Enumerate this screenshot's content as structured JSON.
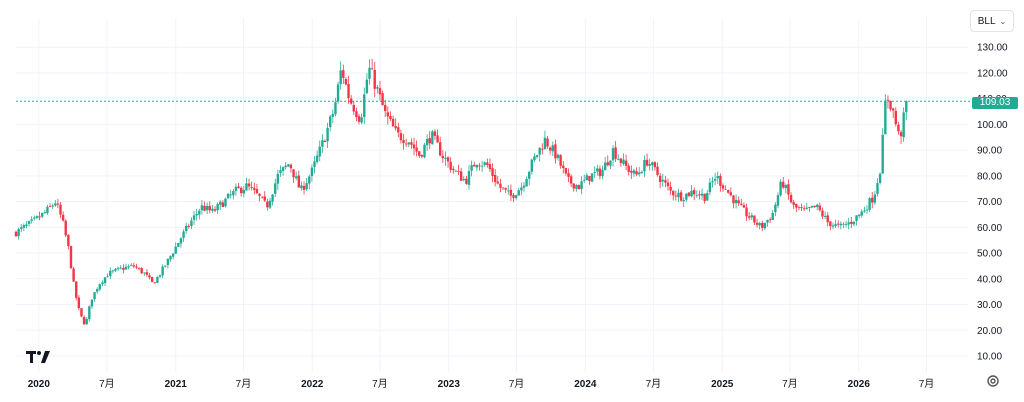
{
  "symbol": {
    "label": "BLL"
  },
  "price_badge": {
    "label": "109.03"
  },
  "colors": {
    "up": "#22ab94",
    "down": "#f23645",
    "grid": "#f0f3fa",
    "axis_text": "#131722",
    "last_line": "#22ab94"
  },
  "icons": {
    "logo": "tradingview-logo-icon",
    "settings": "settings-gear-icon",
    "dropdown": "chevron-down-icon"
  },
  "chart_data": {
    "type": "candlestick",
    "title": "",
    "xlabel": "",
    "ylabel": "",
    "ylim": [
      0,
      140
    ],
    "xlim": [
      "2019-11-01",
      "2026-10-20"
    ],
    "y_ticks": [
      "10.00",
      "20.00",
      "30.00",
      "40.00",
      "50.00",
      "60.00",
      "70.00",
      "80.00",
      "90.00",
      "100.00",
      "110.00",
      "120.00",
      "130.00"
    ],
    "y_tick_values": [
      10,
      20,
      30,
      40,
      50,
      60,
      70,
      80,
      90,
      100,
      110,
      120,
      130
    ],
    "x_ticks": [
      {
        "label": "2020",
        "date": "2020-01-01",
        "bold": true
      },
      {
        "label": "7月",
        "date": "2020-07-01",
        "bold": false
      },
      {
        "label": "2021",
        "date": "2021-01-01",
        "bold": true
      },
      {
        "label": "7月",
        "date": "2021-07-01",
        "bold": false
      },
      {
        "label": "2022",
        "date": "2022-01-01",
        "bold": true
      },
      {
        "label": "7月",
        "date": "2022-07-01",
        "bold": false
      },
      {
        "label": "2023",
        "date": "2023-01-01",
        "bold": true
      },
      {
        "label": "7月",
        "date": "2023-07-01",
        "bold": false
      },
      {
        "label": "2024",
        "date": "2024-01-01",
        "bold": true
      },
      {
        "label": "7月",
        "date": "2024-07-01",
        "bold": false
      },
      {
        "label": "2025",
        "date": "2025-01-01",
        "bold": true
      },
      {
        "label": "7月",
        "date": "2025-07-01",
        "bold": false
      },
      {
        "label": "2026",
        "date": "2026-01-01",
        "bold": true
      },
      {
        "label": "7月",
        "date": "2026-07-01",
        "bold": false
      }
    ],
    "last_price": 109.03,
    "grid": true,
    "close_path": [
      [
        "2019-11-01",
        58
      ],
      [
        "2019-12-15",
        62
      ],
      [
        "2020-01-20",
        66
      ],
      [
        "2020-02-15",
        70
      ],
      [
        "2020-03-05",
        62
      ],
      [
        "2020-03-20",
        52
      ],
      [
        "2020-04-05",
        36
      ],
      [
        "2020-04-20",
        26
      ],
      [
        "2020-05-05",
        22
      ],
      [
        "2020-05-20",
        32
      ],
      [
        "2020-06-10",
        38
      ],
      [
        "2020-07-05",
        42
      ],
      [
        "2020-08-10",
        44
      ],
      [
        "2020-09-10",
        45
      ],
      [
        "2020-10-10",
        42
      ],
      [
        "2020-11-01",
        38
      ],
      [
        "2020-11-20",
        42
      ],
      [
        "2020-12-15",
        48
      ],
      [
        "2021-01-15",
        56
      ],
      [
        "2021-02-10",
        62
      ],
      [
        "2021-03-10",
        68
      ],
      [
        "2021-04-10",
        66
      ],
      [
        "2021-05-10",
        70
      ],
      [
        "2021-06-10",
        74
      ],
      [
        "2021-07-10",
        76
      ],
      [
        "2021-08-10",
        72
      ],
      [
        "2021-09-01",
        68
      ],
      [
        "2021-10-01",
        80
      ],
      [
        "2021-11-01",
        85
      ],
      [
        "2021-12-01",
        74
      ],
      [
        "2022-01-01",
        82
      ],
      [
        "2022-02-01",
        94
      ],
      [
        "2022-03-01",
        106
      ],
      [
        "2022-03-20",
        122
      ],
      [
        "2022-04-10",
        110
      ],
      [
        "2022-05-10",
        102
      ],
      [
        "2022-06-01",
        122
      ],
      [
        "2022-06-20",
        115
      ],
      [
        "2022-07-15",
        104
      ],
      [
        "2022-08-15",
        96
      ],
      [
        "2022-09-15",
        94
      ],
      [
        "2022-10-15",
        88
      ],
      [
        "2022-11-15",
        96
      ],
      [
        "2022-12-15",
        88
      ],
      [
        "2023-01-15",
        82
      ],
      [
        "2023-02-15",
        78
      ],
      [
        "2023-03-15",
        86
      ],
      [
        "2023-04-15",
        84
      ],
      [
        "2023-05-15",
        76
      ],
      [
        "2023-06-15",
        72
      ],
      [
        "2023-07-15",
        76
      ],
      [
        "2023-08-15",
        86
      ],
      [
        "2023-09-15",
        94
      ],
      [
        "2023-10-15",
        88
      ],
      [
        "2023-11-15",
        78
      ],
      [
        "2023-12-15",
        76
      ],
      [
        "2024-01-15",
        80
      ],
      [
        "2024-02-15",
        82
      ],
      [
        "2024-03-15",
        90
      ],
      [
        "2024-04-15",
        84
      ],
      [
        "2024-05-15",
        80
      ],
      [
        "2024-06-15",
        86
      ],
      [
        "2024-07-15",
        80
      ],
      [
        "2024-08-15",
        74
      ],
      [
        "2024-09-15",
        72
      ],
      [
        "2024-10-15",
        74
      ],
      [
        "2024-11-15",
        72
      ],
      [
        "2024-12-15",
        80
      ],
      [
        "2025-01-15",
        74
      ],
      [
        "2025-02-15",
        68
      ],
      [
        "2025-03-15",
        64
      ],
      [
        "2025-04-15",
        60
      ],
      [
        "2025-05-15",
        65
      ],
      [
        "2025-06-10",
        78
      ],
      [
        "2025-07-10",
        68
      ],
      [
        "2025-08-10",
        66
      ],
      [
        "2025-09-10",
        68
      ],
      [
        "2025-10-10",
        62
      ],
      [
        "2025-11-10",
        60
      ],
      [
        "2025-12-10",
        62
      ],
      [
        "2026-01-10",
        66
      ],
      [
        "2026-02-10",
        72
      ],
      [
        "2026-03-01",
        84
      ],
      [
        "2026-03-15",
        112
      ],
      [
        "2026-04-01",
        106
      ],
      [
        "2026-04-20",
        94
      ],
      [
        "2026-05-10",
        109.03
      ]
    ]
  }
}
